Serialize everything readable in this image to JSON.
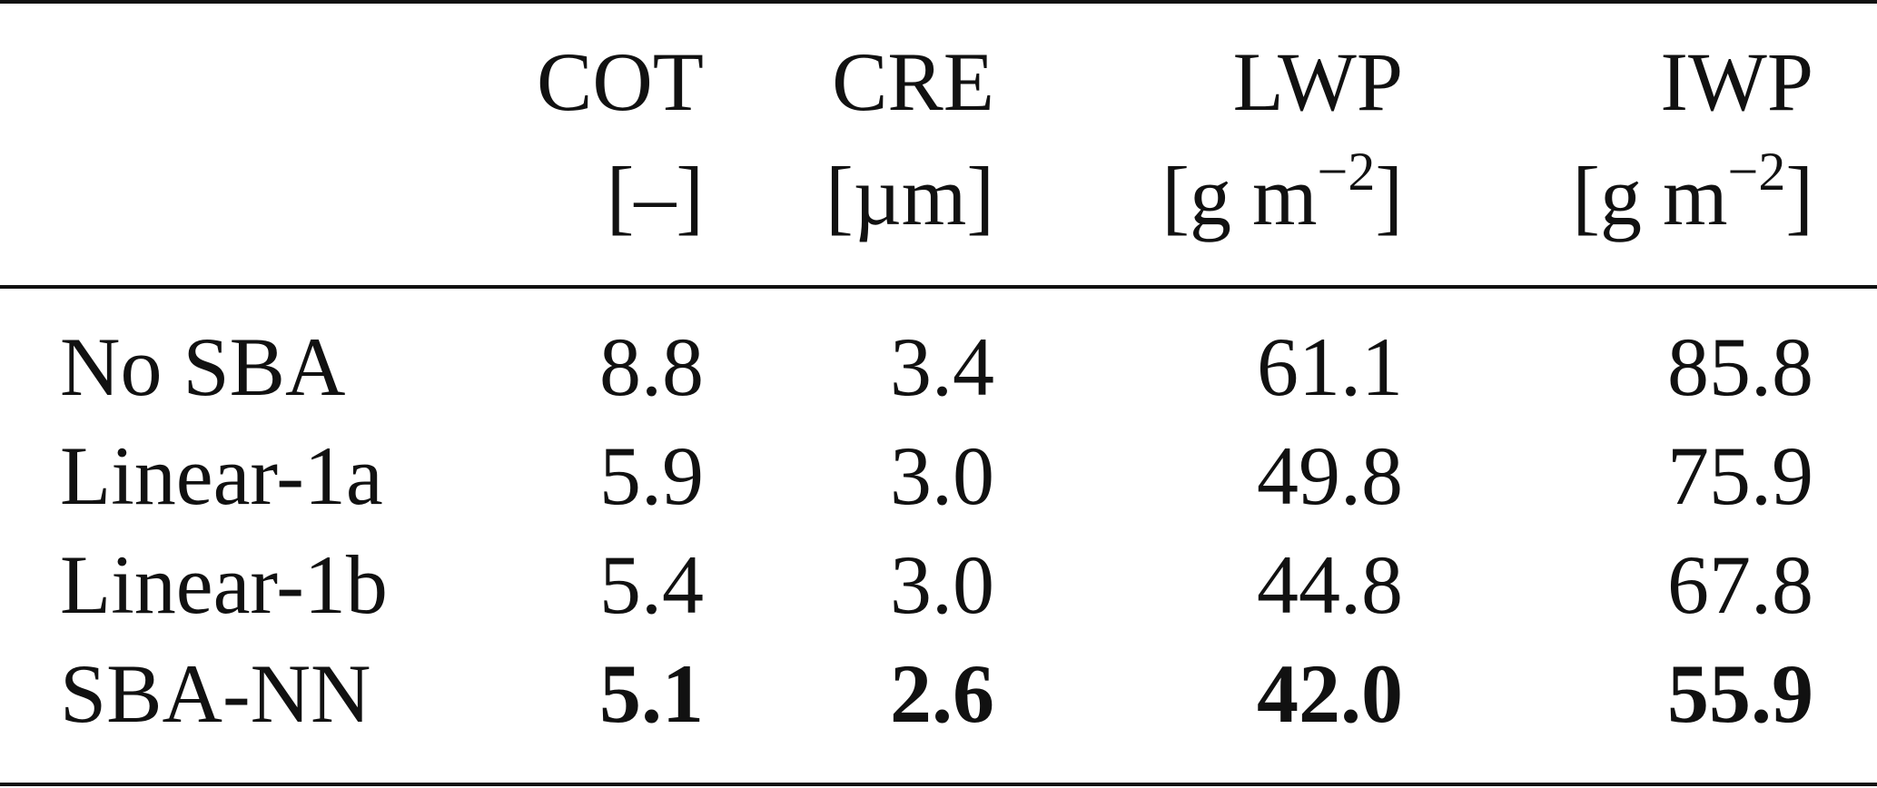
{
  "table": {
    "columns": [
      {
        "name": "COT",
        "unit_prefix": "[–]",
        "unit_exp": ""
      },
      {
        "name": "CRE",
        "unit_prefix": "[µm]",
        "unit_exp": ""
      },
      {
        "name": "LWP",
        "unit_prefix": "[g m",
        "unit_exp": "−2",
        "unit_suffix": "]"
      },
      {
        "name": "IWP",
        "unit_prefix": "[g m",
        "unit_exp": "−2",
        "unit_suffix": "]"
      }
    ],
    "rows": [
      {
        "label": "No SBA",
        "values": [
          "8.8",
          "3.4",
          "61.1",
          "85.8"
        ]
      },
      {
        "label": "Linear-1a",
        "values": [
          "5.9",
          "3.0",
          "49.8",
          "75.9"
        ]
      },
      {
        "label": "Linear-1b",
        "values": [
          "5.4",
          "3.0",
          "44.8",
          "67.8"
        ]
      },
      {
        "label": "SBA-NN",
        "values": [
          "5.1",
          "2.6",
          "42.0",
          "55.9"
        ]
      }
    ]
  }
}
